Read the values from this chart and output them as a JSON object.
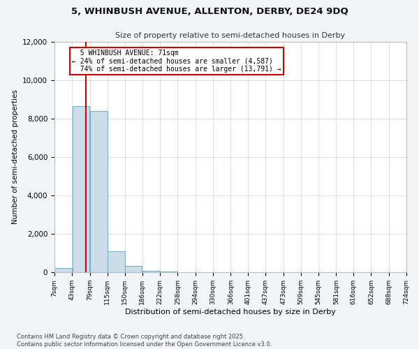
{
  "title_line1": "5, WHINBUSH AVENUE, ALLENTON, DERBY, DE24 9DQ",
  "title_line2": "Size of property relative to semi-detached houses in Derby",
  "xlabel": "Distribution of semi-detached houses by size in Derby",
  "ylabel": "Number of semi-detached properties",
  "property_size": 71,
  "property_label": "5 WHINBUSH AVENUE: 71sqm",
  "pct_smaller": 24,
  "pct_larger": 74,
  "n_smaller": 4587,
  "n_larger": 13791,
  "bin_edges": [
    7,
    43,
    79,
    115,
    150,
    186,
    222,
    258,
    294,
    330,
    366,
    401,
    437,
    473,
    509,
    545,
    581,
    616,
    652,
    688,
    724
  ],
  "bar_heights": [
    230,
    8650,
    8400,
    1100,
    310,
    80,
    20,
    10,
    5,
    3,
    2,
    2,
    1,
    1,
    1,
    1,
    0,
    0,
    0,
    0
  ],
  "bar_facecolor": "#ccdce8",
  "bar_edgecolor": "#7aaec8",
  "vline_color": "#cc0000",
  "annotation_box_color": "#cc0000",
  "ylim": [
    0,
    12000
  ],
  "yticks": [
    0,
    2000,
    4000,
    6000,
    8000,
    10000,
    12000
  ],
  "footer_line1": "Contains HM Land Registry data © Crown copyright and database right 2025.",
  "footer_line2": "Contains public sector information licensed under the Open Government Licence v3.0.",
  "bg_color": "#f2f4f6",
  "plot_bg_color": "#ffffff",
  "grid_color": "#d0d8e0"
}
